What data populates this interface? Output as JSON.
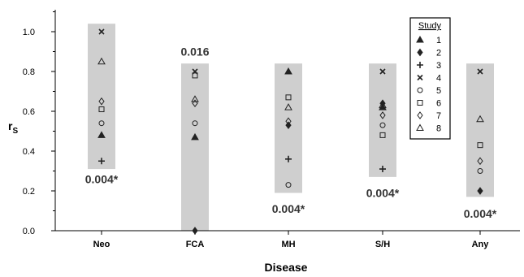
{
  "chart_data": {
    "type": "scatter",
    "title": "",
    "xlabel": "Disease",
    "ylabel": "r",
    "ylabel_sub": "S",
    "ylim": [
      0,
      1.1
    ],
    "yticks": [
      "0.0",
      "0.2",
      "0.4",
      "0.6",
      "0.8",
      "1.0"
    ],
    "ytick_values": [
      0,
      0.2,
      0.4,
      0.6,
      0.8,
      1.0
    ],
    "categories": [
      "Neo",
      "FCA",
      "MH",
      "S/H",
      "Any"
    ],
    "ranges": [
      {
        "category": "Neo",
        "low": 0.31,
        "high": 1.04
      },
      {
        "category": "FCA",
        "low": 0.0,
        "high": 0.84
      },
      {
        "category": "MH",
        "low": 0.19,
        "high": 0.84
      },
      {
        "category": "S/H",
        "low": 0.27,
        "high": 0.84
      },
      {
        "category": "Any",
        "low": 0.17,
        "high": 0.84
      }
    ],
    "p_values": [
      {
        "category": "Neo",
        "text": "0.004*",
        "y": 0.26
      },
      {
        "category": "FCA",
        "text": "0.016",
        "y": 0.9
      },
      {
        "category": "MH",
        "text": "0.004*",
        "y": 0.11
      },
      {
        "category": "S/H",
        "text": "0.004*",
        "y": 0.19
      },
      {
        "category": "Any",
        "text": "0.004*",
        "y": 0.085
      }
    ],
    "legend_title": "Study",
    "legend_position": "top-right",
    "series": [
      {
        "name": "1",
        "marker": "triangle-filled",
        "values": [
          0.48,
          0.47,
          0.8,
          0.62,
          null
        ]
      },
      {
        "name": "2",
        "marker": "diamond-filled",
        "values": [
          null,
          0.0,
          0.53,
          0.64,
          0.2
        ]
      },
      {
        "name": "3",
        "marker": "plus",
        "values": [
          0.35,
          null,
          0.36,
          0.31,
          null
        ]
      },
      {
        "name": "4",
        "marker": "cross",
        "values": [
          1.0,
          0.8,
          null,
          0.8,
          0.8
        ]
      },
      {
        "name": "5",
        "marker": "circle-open",
        "values": [
          0.54,
          0.54,
          0.23,
          0.53,
          0.3
        ]
      },
      {
        "name": "6",
        "marker": "square-open",
        "values": [
          0.61,
          0.78,
          0.67,
          0.48,
          0.43
        ]
      },
      {
        "name": "7",
        "marker": "diamond-open",
        "values": [
          0.65,
          0.64,
          0.55,
          0.58,
          0.35
        ]
      },
      {
        "name": "8",
        "marker": "triangle-open",
        "values": [
          0.85,
          0.66,
          0.62,
          0.63,
          0.56
        ]
      }
    ]
  }
}
